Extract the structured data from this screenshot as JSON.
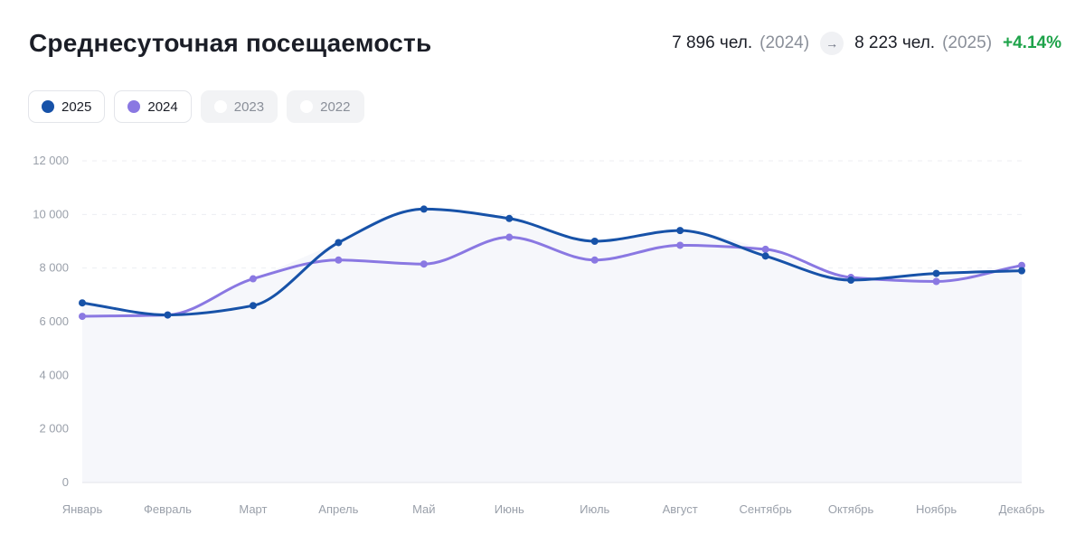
{
  "header": {
    "title": "Среднесуточная посещаемость",
    "prev_value": "7 896 чел.",
    "prev_year": "(2024)",
    "arrow": "→",
    "curr_value": "8 223 чел.",
    "curr_year": "(2025)",
    "delta": "+4.14%"
  },
  "legend": [
    {
      "label": "2025",
      "color": "#1752a8",
      "active": true
    },
    {
      "label": "2024",
      "color": "#8a78e2",
      "active": true
    },
    {
      "label": "2023",
      "color": "#ffffff",
      "active": false
    },
    {
      "label": "2022",
      "color": "#ffffff",
      "active": false
    }
  ],
  "chart_data": {
    "type": "line",
    "categories": [
      "Январь",
      "Февраль",
      "Март",
      "Апрель",
      "Май",
      "Июнь",
      "Июль",
      "Август",
      "Сентябрь",
      "Октябрь",
      "Ноябрь",
      "Декабрь"
    ],
    "series": [
      {
        "name": "2025",
        "color": "#1752a8",
        "values": [
          6700,
          6250,
          6600,
          8950,
          10200,
          9850,
          9000,
          9400,
          8450,
          7550,
          7800,
          7900
        ]
      },
      {
        "name": "2024",
        "color": "#8a78e2",
        "values": [
          6200,
          6250,
          7600,
          8300,
          8150,
          9150,
          8300,
          8850,
          8700,
          7650,
          7500,
          8100
        ]
      }
    ],
    "ylim": [
      0,
      12000
    ],
    "yticks": [
      0,
      2000,
      4000,
      6000,
      8000,
      10000,
      12000
    ],
    "ytick_labels": [
      "0",
      "2 000",
      "4 000",
      "6 000",
      "8 000",
      "10 000",
      "12 000"
    ],
    "grid": true,
    "area_fill": "#f6f7fb"
  }
}
